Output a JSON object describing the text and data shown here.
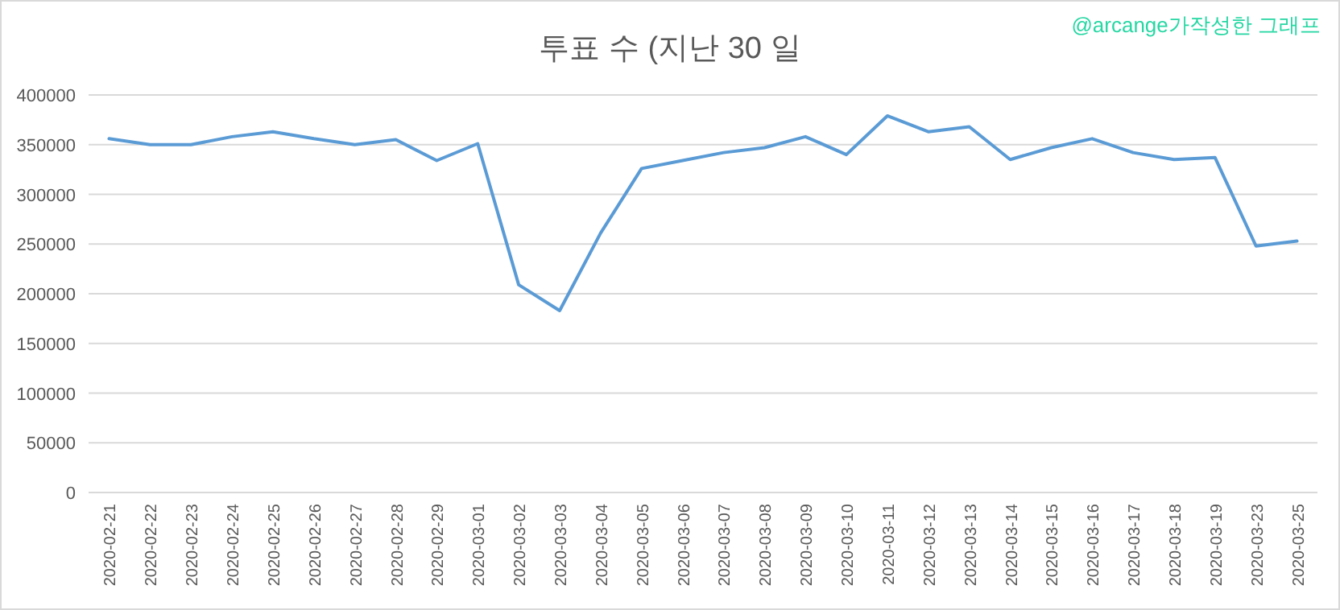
{
  "chart_data": {
    "type": "line",
    "title": "투표 수 (지난 30 일",
    "annotations": [
      "@arcange가작성한 그래프"
    ],
    "categories": [
      "2020-02-21",
      "2020-02-22",
      "2020-02-23",
      "2020-02-24",
      "2020-02-25",
      "2020-02-26",
      "2020-02-27",
      "2020-02-28",
      "2020-02-29",
      "2020-03-01",
      "2020-03-02",
      "2020-03-03",
      "2020-03-04",
      "2020-03-05",
      "2020-03-06",
      "2020-03-07",
      "2020-03-08",
      "2020-03-09",
      "2020-03-10",
      "2020-03-11",
      "2020-03-12",
      "2020-03-13",
      "2020-03-14",
      "2020-03-15",
      "2020-03-16",
      "2020-03-17",
      "2020-03-18",
      "2020-03-19",
      "2020-03-23",
      "2020-03-25"
    ],
    "series": [
      {
        "color": "#5b9bd5",
        "values": [
          356000,
          350000,
          350000,
          358000,
          363000,
          356000,
          350000,
          355000,
          334000,
          351000,
          209000,
          183000,
          261000,
          326000,
          334000,
          342000,
          347000,
          358000,
          340000,
          379000,
          363000,
          368000,
          335000,
          347000,
          356000,
          342000,
          335000,
          337000,
          248000,
          253000
        ]
      }
    ],
    "ylim": [
      0,
      400000
    ],
    "yticks": [
      0,
      50000,
      100000,
      150000,
      200000,
      250000,
      300000,
      350000,
      400000
    ],
    "grid": "y",
    "marker": "none",
    "line_style": "solid"
  }
}
